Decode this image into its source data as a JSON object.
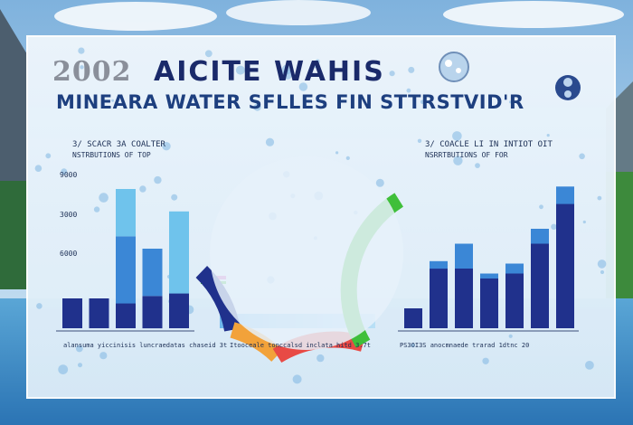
{
  "header": {
    "year": "2002",
    "title": "AICITE WAHIS",
    "subtitle": "MINEARA WATER SFLLES FIN STTRSTVID'R"
  },
  "panels": {
    "left_label_line1": "3/ SCACR 3A COALTER",
    "left_label_line2": "NSTRBUTIONS OF TOP",
    "right_label_line1": "3/ COACLE LI IN INTIOT OIT",
    "right_label_line2": "NSRRTBUTIONS OF FOR",
    "left_axis_caption": "alansuma yiccinisis luncraedatas chaseid 3t",
    "mid_axis_caption": "Itooceale tonccalsd inclata hitd 3.7t",
    "right_axis_caption": "PS3OI3S anocmnaede trarad 1dtnc 20"
  },
  "colors": {
    "navy": "#20318c",
    "blue": "#3b87d6",
    "sky": "#6fc3ec",
    "gauge_green": "#3fbf3a",
    "gauge_red": "#e84a45",
    "gauge_orange": "#f2a23a",
    "gauge_yellow": "#e6d23a"
  },
  "chart_data": [
    {
      "type": "bar",
      "title": "3/ SCACR 3A COALTER",
      "ytick_labels": [
        "9000",
        "3000",
        "6000"
      ],
      "stacked": true,
      "series": [
        {
          "values": [
            12,
            12,
            10,
            13,
            14
          ]
        },
        {
          "values": [
            0,
            0,
            27,
            19,
            0
          ]
        },
        {
          "values": [
            0,
            0,
            19,
            0,
            33
          ]
        }
      ],
      "ylim": [
        0,
        60
      ]
    },
    {
      "type": "pie",
      "note": "semicircular gauge",
      "segments": [
        {
          "color": "#20318c",
          "value": 18
        },
        {
          "color": "#f2a23a",
          "value": 14
        },
        {
          "color": "#e84a45",
          "value": 24
        },
        {
          "color": "#3fbf3a",
          "value": 44
        }
      ]
    },
    {
      "type": "bar",
      "title": "3/ COACLE LI IN INTIOT OIT",
      "stacked": true,
      "series": [
        {
          "values": [
            8,
            24,
            24,
            20,
            22,
            34,
            50
          ]
        },
        {
          "values": [
            0,
            3,
            10,
            2,
            4,
            6,
            7
          ]
        }
      ],
      "ylim": [
        0,
        60
      ]
    }
  ]
}
